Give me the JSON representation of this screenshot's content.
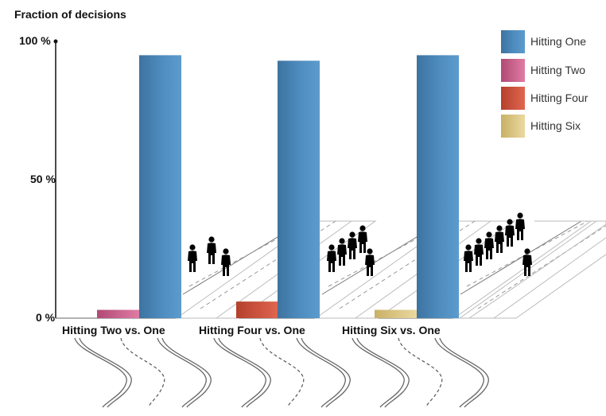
{
  "chart_data": {
    "type": "bar",
    "title": "Fraction of decisions",
    "categories": [
      "Hitting Two vs. One",
      "Hitting Four vs. One",
      "Hitting Six vs. One"
    ],
    "yticks": [
      "0 %",
      "50 %",
      "100 %"
    ],
    "ylim": [
      0,
      100
    ],
    "grid": false,
    "legend_position": "top-right",
    "series": [
      {
        "name": "Hitting One",
        "values": [
          95,
          93,
          95
        ],
        "color": "#4a86b5"
      },
      {
        "name": "Hitting Two",
        "values": [
          3,
          null,
          null
        ],
        "color": "#c8608a"
      },
      {
        "name": "Hitting Four",
        "values": [
          null,
          6,
          null
        ],
        "color": "#c8503a"
      },
      {
        "name": "Hitting Six",
        "values": [
          null,
          null,
          3
        ],
        "color": "#d9c47a"
      }
    ]
  },
  "illustration": {
    "person_icon": "person-icon",
    "track_icon": "track-icon",
    "people_on_side_track": [
      2,
      4,
      6
    ],
    "people_on_main_track": 1
  }
}
